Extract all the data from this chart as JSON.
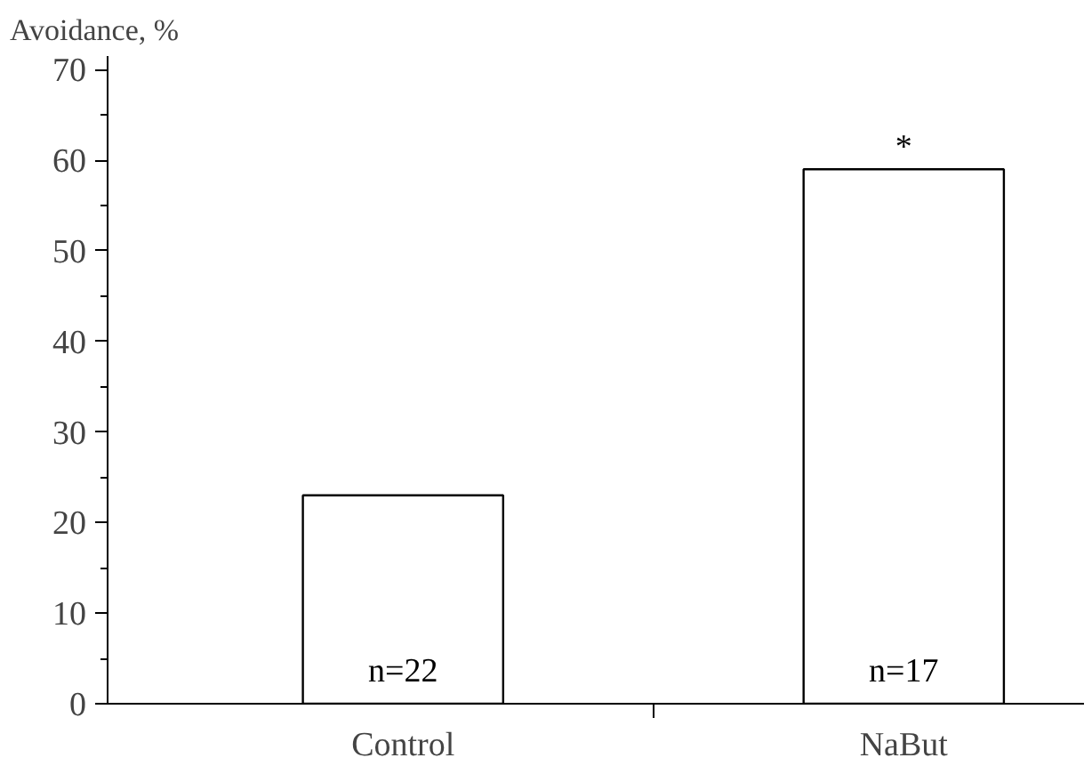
{
  "chart_data": {
    "type": "bar",
    "ylabel": "Avoidance, %",
    "categories": [
      "Control",
      "NaBut"
    ],
    "values": [
      23,
      59
    ],
    "color": "#ffffff",
    "ylim": [
      0,
      71.5
    ],
    "yticks": [
      0,
      10,
      20,
      30,
      40,
      50,
      60,
      70
    ],
    "grid": false,
    "annotations": [
      "n=22",
      "n=17",
      "*"
    ]
  }
}
